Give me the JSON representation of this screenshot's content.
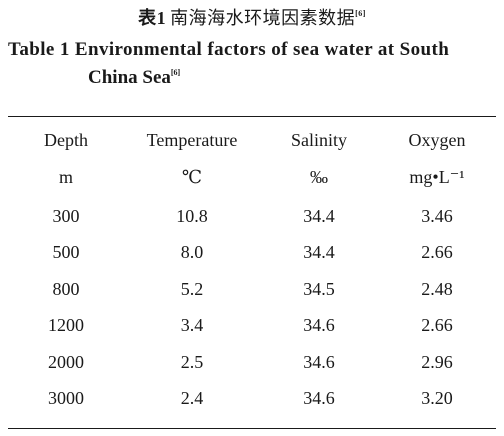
{
  "caption": {
    "cn_label": "表1",
    "cn_text": "南海海水环境因素数据",
    "ref": "[6]",
    "en_line1": "Table 1 Environmental factors of sea water at South",
    "en_line2": "China Sea"
  },
  "table": {
    "columns": [
      {
        "name": "Depth",
        "unit": "m"
      },
      {
        "name": "Temperature",
        "unit": "℃"
      },
      {
        "name": "Salinity",
        "unit": "‰"
      },
      {
        "name": "Oxygen",
        "unit": "mg•L⁻¹"
      }
    ],
    "rows": [
      [
        "300",
        "10.8",
        "34.4",
        "3.46"
      ],
      [
        "500",
        "8.0",
        "34.4",
        "2.66"
      ],
      [
        "800",
        "5.2",
        "34.5",
        "2.48"
      ],
      [
        "1200",
        "3.4",
        "34.6",
        "2.66"
      ],
      [
        "2000",
        "2.5",
        "34.6",
        "2.96"
      ],
      [
        "3000",
        "2.4",
        "34.6",
        "3.20"
      ]
    ]
  }
}
